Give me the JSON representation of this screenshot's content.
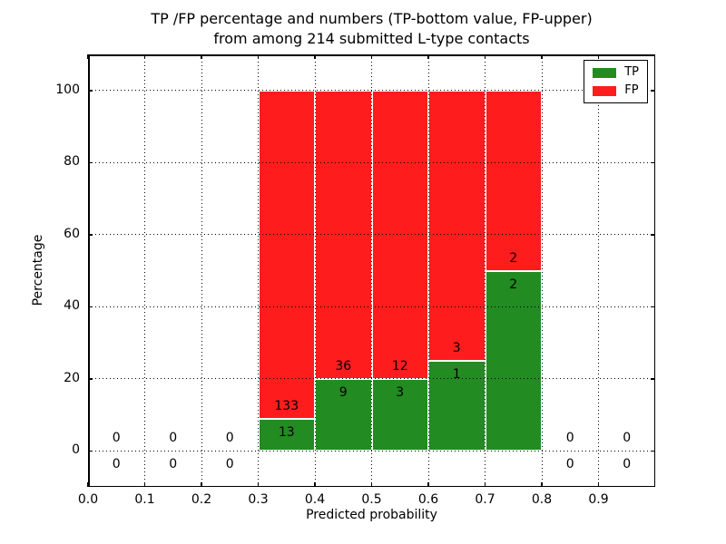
{
  "chart_data": {
    "type": "bar",
    "stacked": true,
    "percentage_normalized": true,
    "title_lines": [
      "TP /FP percentage and numbers (TP-bottom value, FP-upper)",
      "from among 214 submitted L-type contacts"
    ],
    "total_contacts": 214,
    "xlabel": "Predicted probability",
    "ylabel": "Percentage",
    "xlim": [
      0.0,
      1.0
    ],
    "ylim": [
      -10,
      110
    ],
    "grid": "dotted-both-axes",
    "legend_position": "upper right",
    "xticks": [
      "0.0",
      "0.1",
      "0.2",
      "0.3",
      "0.4",
      "0.5",
      "0.6",
      "0.7",
      "0.8",
      "0.9"
    ],
    "xtick_values": [
      0.0,
      0.1,
      0.2,
      0.3,
      0.4,
      0.5,
      0.6,
      0.7,
      0.8,
      0.9
    ],
    "yticks": [
      "0",
      "20",
      "40",
      "60",
      "80",
      "100"
    ],
    "ytick_values": [
      0,
      20,
      40,
      60,
      80,
      100
    ],
    "series": [
      {
        "name": "TP",
        "color": "#228B22"
      },
      {
        "name": "FP",
        "color": "#FF1C1C"
      }
    ],
    "bins": [
      {
        "range": [
          0.0,
          0.1
        ],
        "tp": 0,
        "fp": 0
      },
      {
        "range": [
          0.1,
          0.2
        ],
        "tp": 0,
        "fp": 0
      },
      {
        "range": [
          0.2,
          0.3
        ],
        "tp": 0,
        "fp": 0
      },
      {
        "range": [
          0.3,
          0.4
        ],
        "tp": 13,
        "fp": 133
      },
      {
        "range": [
          0.4,
          0.5
        ],
        "tp": 9,
        "fp": 36
      },
      {
        "range": [
          0.5,
          0.6
        ],
        "tp": 3,
        "fp": 12
      },
      {
        "range": [
          0.6,
          0.7
        ],
        "tp": 1,
        "fp": 3
      },
      {
        "range": [
          0.7,
          0.8
        ],
        "tp": 2,
        "fp": 2
      },
      {
        "range": [
          0.8,
          0.9
        ],
        "tp": 0,
        "fp": 0
      },
      {
        "range": [
          0.9,
          1.0
        ],
        "tp": 0,
        "fp": 0
      }
    ]
  }
}
